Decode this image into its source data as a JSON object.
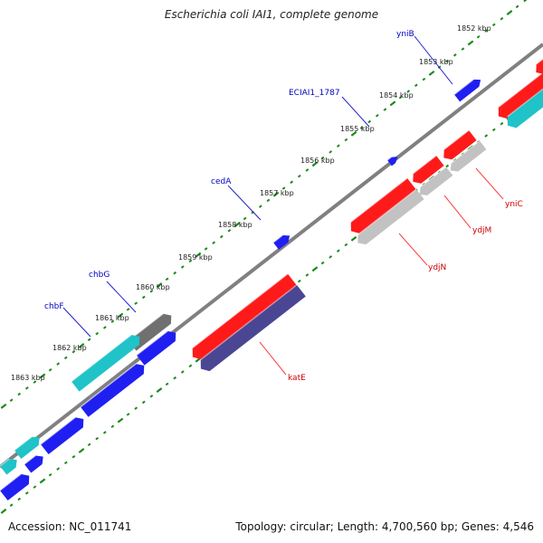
{
  "title": "Escherichia coli IAI1, complete genome",
  "accession_line": "Accession: NC_011741",
  "summary_line": "Topology: circular; Length: 4,700,560 bp; Genes: 4,546",
  "colors": {
    "backbone": "#808080",
    "tick": "#1a8a1a",
    "red": "#ff1a1a",
    "grey": "#c2c2c2",
    "blue": "#1f1ff2",
    "cyan": "#1fc3c8",
    "purple": "#4a4694",
    "darkgrey": "#707070",
    "forward_label": "#0000c0",
    "reverse_label": "#d00000",
    "forward_leader": "#2020d0",
    "reverse_leader": "#ff4040"
  },
  "kbp_labels": [
    "1852 kbp",
    "1853 kbp",
    "1854 kbp",
    "1855 kbp",
    "1856 kbp",
    "1857 kbp",
    "1858 kbp",
    "1859 kbp",
    "1860 kbp",
    "1861 kbp",
    "1862 kbp",
    "1863 kbp"
  ],
  "forward_gene_labels": [
    "yniB",
    "ECIAI1_1787",
    "cedA",
    "chbG",
    "chbF"
  ],
  "reverse_gene_labels": [
    "yniC",
    "ydjM",
    "ydjN",
    "katE"
  ]
}
